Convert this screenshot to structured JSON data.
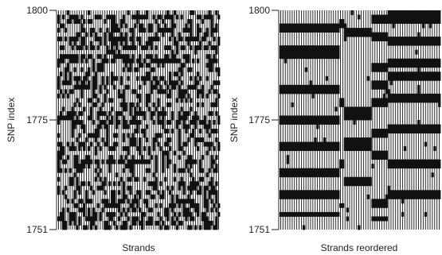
{
  "chart_data": [
    {
      "type": "heatmap",
      "panel": "left",
      "xlabel": "Strands",
      "ylabel": "SNP index",
      "ylim": [
        1751,
        1800
      ],
      "yticks": [
        1751,
        1775,
        1800
      ],
      "colors": {
        "stripe": "#111111",
        "background": "#ffffff"
      },
      "strand_count": 70,
      "snp_count": 50,
      "pattern": "randomly interleaved strands"
    },
    {
      "type": "heatmap",
      "panel": "right",
      "xlabel": "Strands reordered",
      "ylabel": "SNP index",
      "ylim": [
        1751,
        1800
      ],
      "yticks": [
        1751,
        1775,
        1800
      ],
      "colors": {
        "stripe": "#111111",
        "background": "#ffffff"
      },
      "strand_count": 70,
      "snp_count": 50,
      "pattern": "strands grouped by haplotype forming contiguous blocks"
    }
  ]
}
